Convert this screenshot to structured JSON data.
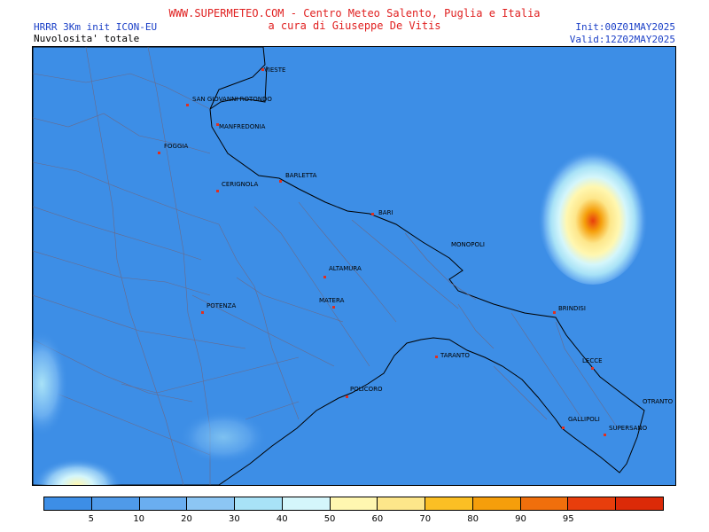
{
  "header": {
    "title_line1": "WWW.SUPERMETEO.COM - Centro Meteo Salento, Puglia e Italia",
    "title_line2": "a cura di Giuseppe De Vitis",
    "model": "HRRR 3Km init ICON-EU",
    "field": "Nuvolosita' totale",
    "init": "Init:00Z01MAY2025",
    "valid": "Valid:12Z02MAY2025"
  },
  "cities": [
    {
      "key": "vieste",
      "label": "VIESTE"
    },
    {
      "key": "san_giovanni",
      "label": "SAN GIOVANNI ROTONDO"
    },
    {
      "key": "manfredonia",
      "label": "MANFREDONIA"
    },
    {
      "key": "foggia",
      "label": "FOGGIA"
    },
    {
      "key": "barletta",
      "label": "BARLETTA"
    },
    {
      "key": "cerignola",
      "label": "CERIGNOLA"
    },
    {
      "key": "bari",
      "label": "BARI"
    },
    {
      "key": "monopoli",
      "label": "MONOPOLI"
    },
    {
      "key": "altamura",
      "label": "ALTAMURA"
    },
    {
      "key": "matera",
      "label": "MATERA"
    },
    {
      "key": "potenza",
      "label": "POTENZA"
    },
    {
      "key": "brindisi",
      "label": "BRINDISI"
    },
    {
      "key": "taranto",
      "label": "TARANTO"
    },
    {
      "key": "lecce",
      "label": "LECCE"
    },
    {
      "key": "policoro",
      "label": "POLICORO"
    },
    {
      "key": "otranto",
      "label": "OTRANTO"
    },
    {
      "key": "gallipoli",
      "label": "GALLIPOLI"
    },
    {
      "key": "supersano",
      "label": "SUPERSANO"
    }
  ],
  "legend": {
    "ticks": [
      "5",
      "10",
      "20",
      "30",
      "40",
      "50",
      "60",
      "70",
      "80",
      "90",
      "95"
    ],
    "colors": [
      "#3d8ee6",
      "#4f9ae9",
      "#6aaef0",
      "#8cc6f4",
      "#a8e2f7",
      "#d4f6fb",
      "#fff7b0",
      "#fde68a",
      "#fbbf24",
      "#f59e0b",
      "#f06f0c",
      "#e83e0c",
      "#dc2a08"
    ]
  },
  "map": {
    "sea_color": "#3d8ee6",
    "land_border_color": "#6a6a8a",
    "coast_color": "#000000"
  }
}
